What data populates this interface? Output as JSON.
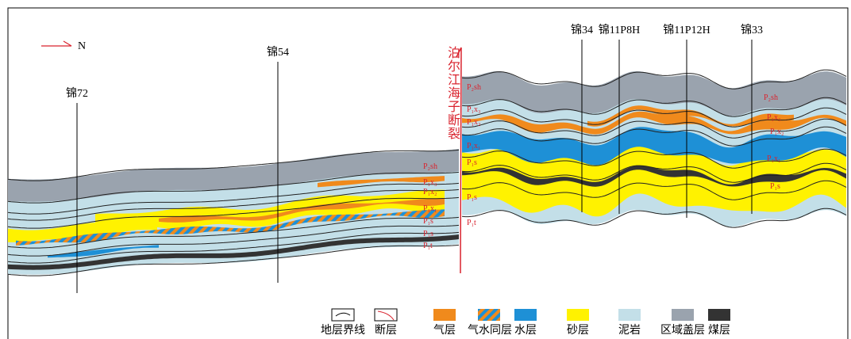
{
  "north": "N",
  "wells": [
    "锦72",
    "锦54",
    "锦34",
    "锦11P8H",
    "锦11P12H",
    "锦33"
  ],
  "fault_label": "泊尔江海子断裂",
  "formation_labels": {
    "left": [
      "P₂sh",
      "P₁x₃",
      "P₁x₂",
      "P₁x₁",
      "P₁s",
      "P₁s",
      "P₁t"
    ],
    "middle": [
      "P₂sh",
      "P₁x₃",
      "P₁x₂",
      "P₁x₁",
      "P₁s",
      "P₁s",
      "P₁t"
    ],
    "right": [
      "P₂sh",
      "P₁x₃",
      "P₁x₂",
      "P₁x₁",
      "P₁s"
    ]
  },
  "legend": [
    "地层界线",
    "断层",
    "气层",
    "气水同层",
    "水层",
    "砂层",
    "泥岩",
    "区域盖层",
    "煤层"
  ]
}
